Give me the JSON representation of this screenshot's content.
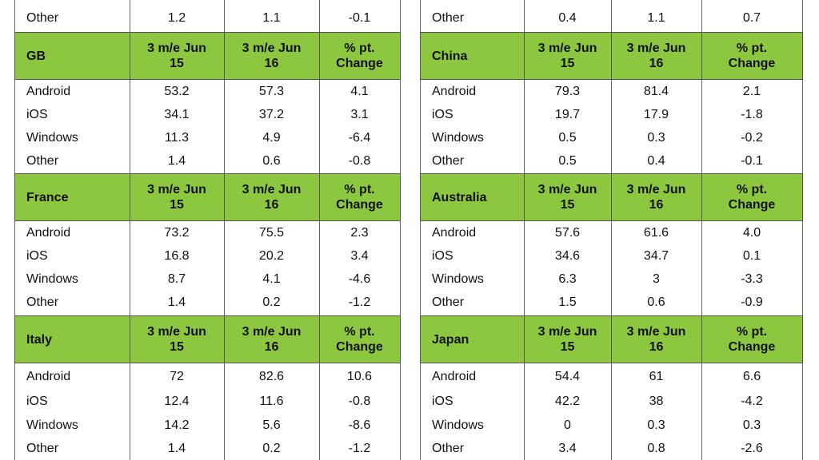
{
  "tables": [
    {
      "top_rows": [
        [
          "Other",
          "1.2",
          "1.1",
          "-0.1"
        ]
      ],
      "sections": [
        {
          "header": [
            "GB",
            "3 m/e Jun\n15",
            "3 m/e Jun\n16",
            "% pt.\nChange"
          ],
          "rows": [
            [
              "Android",
              "53.2",
              "57.3",
              "4.1"
            ],
            [
              "iOS",
              "34.1",
              "37.2",
              "3.1"
            ],
            [
              "Windows",
              "11.3",
              "4.9",
              "-6.4"
            ],
            [
              "Other",
              "1.4",
              "0.6",
              "-0.8"
            ]
          ]
        },
        {
          "header": [
            "France",
            "3 m/e Jun\n15",
            "3 m/e Jun\n16",
            "% pt.\nChange"
          ],
          "rows": [
            [
              "Android",
              "73.2",
              "75.5",
              "2.3"
            ],
            [
              "iOS",
              "16.8",
              "20.2",
              "3.4"
            ],
            [
              "Windows",
              "8.7",
              "4.1",
              "-4.6"
            ],
            [
              "Other",
              "1.4",
              "0.2",
              "-1.2"
            ]
          ]
        },
        {
          "header": [
            "Italy",
            "3 m/e Jun\n15",
            "3 m/e Jun\n16",
            "% pt.\nChange"
          ],
          "rows": [
            [
              "Android",
              "72",
              "82.6",
              "10.6"
            ],
            [
              "iOS",
              "12.4",
              "11.6",
              "-0.8"
            ],
            [
              "Windows",
              "14.2",
              "5.6",
              "-8.6"
            ],
            [
              "Other",
              "1.4",
              "0.2",
              "-1.2"
            ]
          ]
        }
      ]
    },
    {
      "top_rows": [
        [
          "Other",
          "0.4",
          "1.1",
          "0.7"
        ]
      ],
      "sections": [
        {
          "header": [
            "China",
            "3 m/e Jun\n15",
            "3 m/e Jun\n16",
            "% pt.\nChange"
          ],
          "rows": [
            [
              "Android",
              "79.3",
              "81.4",
              "2.1"
            ],
            [
              "iOS",
              "19.7",
              "17.9",
              "-1.8"
            ],
            [
              "Windows",
              "0.5",
              "0.3",
              "-0.2"
            ],
            [
              "Other",
              "0.5",
              "0.4",
              "-0.1"
            ]
          ]
        },
        {
          "header": [
            "Australia",
            "3 m/e Jun\n15",
            "3 m/e Jun\n16",
            "% pt.\nChange"
          ],
          "rows": [
            [
              "Android",
              "57.6",
              "61.6",
              "4.0"
            ],
            [
              "iOS",
              "34.6",
              "34.7",
              "0.1"
            ],
            [
              "Windows",
              "6.3",
              "3",
              "-3.3"
            ],
            [
              "Other",
              "1.5",
              "0.6",
              "-0.9"
            ]
          ]
        },
        {
          "header": [
            "Japan",
            "3 m/e Jun\n15",
            "3 m/e Jun\n16",
            "% pt.\nChange"
          ],
          "rows": [
            [
              "Android",
              "54.4",
              "61",
              "6.6"
            ],
            [
              "iOS",
              "42.2",
              "38",
              "-4.2"
            ],
            [
              "Windows",
              "0",
              "0.3",
              "0.3"
            ],
            [
              "Other",
              "3.4",
              "0.8",
              "-2.6"
            ]
          ]
        }
      ]
    }
  ]
}
